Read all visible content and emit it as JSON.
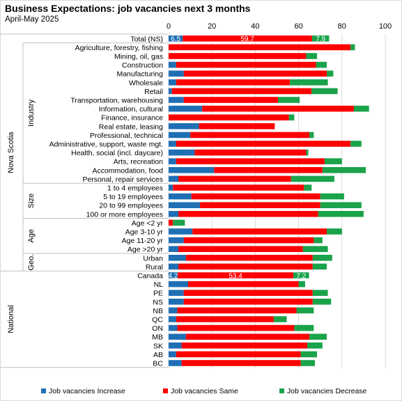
{
  "chart_data": {
    "type": "bar",
    "orientation": "horizontal",
    "stacked": true,
    "title": "Business Expectations: job vacancies next 3 months",
    "subtitle": "April-May 2025",
    "xlim": [
      0,
      100
    ],
    "x_ticks": [
      0,
      20,
      40,
      60,
      80,
      100
    ],
    "grid": true,
    "legend_position": "bottom",
    "categories": [
      "Total (NS)",
      "Agriculture, forestry, fishing",
      "Mining, oil, gas",
      "Construction",
      "Manufacturing",
      "Wholesale",
      "Retail",
      "Transportation, warehousing",
      "Information, cultural",
      "Finance, insurance",
      "Real estate, leasing",
      "Professional, technical",
      "Administrative, support, waste mgt.",
      "Health, social (incl. daycare)",
      "Arts, recreation",
      "Accommodation, food",
      "Personal, repair services",
      "1 to 4 employees",
      "5 to 19 employees",
      "20 to 99 employees",
      "100 or more employees",
      "Age <2 yr",
      "Age 3-10 yr",
      "Age 11-20 yr",
      "Age >20 yr",
      "Urban",
      "Rural",
      "Canada",
      "NL",
      "PE",
      "NS",
      "NB",
      "QC",
      "ON",
      "MB",
      "SK",
      "AB",
      "BC"
    ],
    "series": [
      {
        "name": "Job vacancies Increase",
        "color": "#1f6fb4",
        "values": [
          6.5,
          0,
          0,
          3.5,
          7,
          3.5,
          1.5,
          7,
          15.5,
          0,
          14,
          10,
          3.5,
          12,
          3.5,
          21,
          4.5,
          2,
          10.5,
          14.5,
          4.5,
          0,
          11,
          7,
          4.5,
          8,
          4.5,
          4.2,
          9,
          7,
          7,
          4,
          3.5,
          4,
          8,
          6,
          3.5,
          6
        ]
      },
      {
        "name": "Job vacancies Same",
        "color": "#ff0000",
        "values": [
          59.7,
          84,
          63.5,
          64.5,
          66,
          52.5,
          64.5,
          43.5,
          70,
          55.5,
          35,
          55,
          80.5,
          51.5,
          68.5,
          50,
          52,
          60.5,
          59.5,
          55.5,
          64.5,
          2,
          62,
          60,
          57.5,
          58.5,
          62,
          53.4,
          51,
          59.5,
          59.5,
          55,
          45,
          54,
          57,
          58,
          57.5,
          55
        ]
      },
      {
        "name": "Job vacancies Decrease",
        "color": "#1aa34a",
        "values": [
          7.9,
          2,
          5,
          5,
          3,
          17.5,
          12,
          10,
          7,
          2.5,
          0,
          2,
          5,
          1,
          8,
          20,
          20,
          3.5,
          11,
          19,
          21,
          5.5,
          7,
          4,
          11.5,
          9,
          6.5,
          7.2,
          3,
          7,
          8.5,
          8,
          6,
          9,
          8,
          7,
          7.5,
          6.5
        ]
      }
    ],
    "data_labels": [
      {
        "category": "Total (NS)",
        "values": [
          "6.5",
          "59.7",
          "7.9"
        ]
      },
      {
        "category": "Canada",
        "values": [
          "4.2",
          "53.4",
          "7.2"
        ]
      }
    ],
    "groups": [
      {
        "name": "Nova Scotia",
        "start": 0,
        "end": 26
      },
      {
        "name": "National",
        "start": 27,
        "end": 37
      }
    ],
    "subgroups": [
      {
        "name": "Industry",
        "start": 1,
        "end": 16
      },
      {
        "name": "Size",
        "start": 17,
        "end": 20
      },
      {
        "name": "Age",
        "start": 21,
        "end": 24
      },
      {
        "name": "Geo.",
        "start": 25,
        "end": 26
      }
    ]
  }
}
